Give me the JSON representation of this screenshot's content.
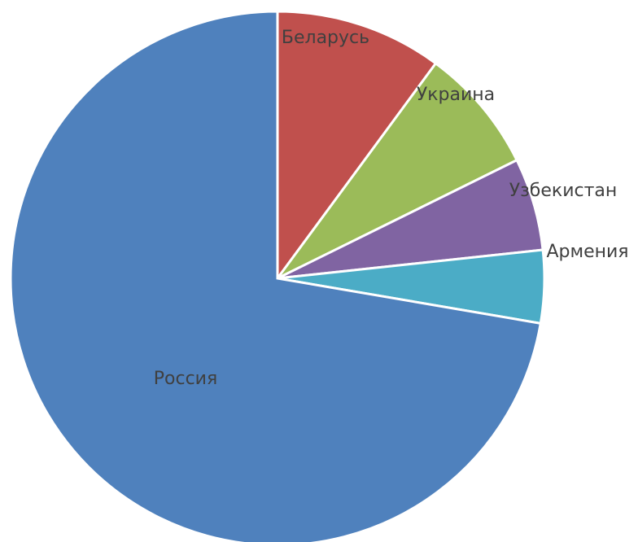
{
  "chart_data": {
    "type": "pie",
    "title": "",
    "start_angle_deg": 90,
    "direction": "clockwise",
    "legend": "none",
    "data_labels": "category names on slices",
    "slices": [
      {
        "label": "Беларусь",
        "value": 10.1,
        "color": "#C0504D"
      },
      {
        "label": "Украина",
        "value": 7.6,
        "color": "#9BBB59"
      },
      {
        "label": "Узбекистан",
        "value": 5.6,
        "color": "#8064A2"
      },
      {
        "label": "Армения",
        "value": 4.4,
        "color": "#4BACC6"
      },
      {
        "label": "Россия",
        "value": 72.3,
        "color": "#4F81BD"
      }
    ]
  }
}
